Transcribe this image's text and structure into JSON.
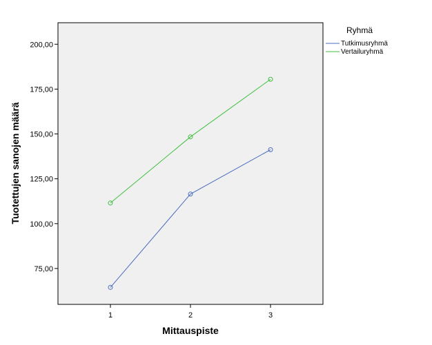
{
  "chart_data": {
    "type": "line",
    "xlabel": "Mittauspiste",
    "ylabel": "Tuotettujen sanojen määrä",
    "categories": [
      "1",
      "2",
      "3"
    ],
    "y_ticks": [
      "75,00",
      "100,00",
      "125,00",
      "150,00",
      "175,00",
      "200,00"
    ],
    "ylim": [
      55,
      212
    ],
    "legend_title": "Ryhmä",
    "legend_position": "top-right outside plot",
    "grid": false,
    "series": [
      {
        "name": "Tutkimusryhmä",
        "color": "#4a6bbf",
        "values": [
          64.5,
          116.5,
          141.2
        ]
      },
      {
        "name": "Vertailuryhmä",
        "color": "#3fbf3f",
        "values": [
          111.5,
          148.4,
          180.5
        ]
      }
    ]
  }
}
